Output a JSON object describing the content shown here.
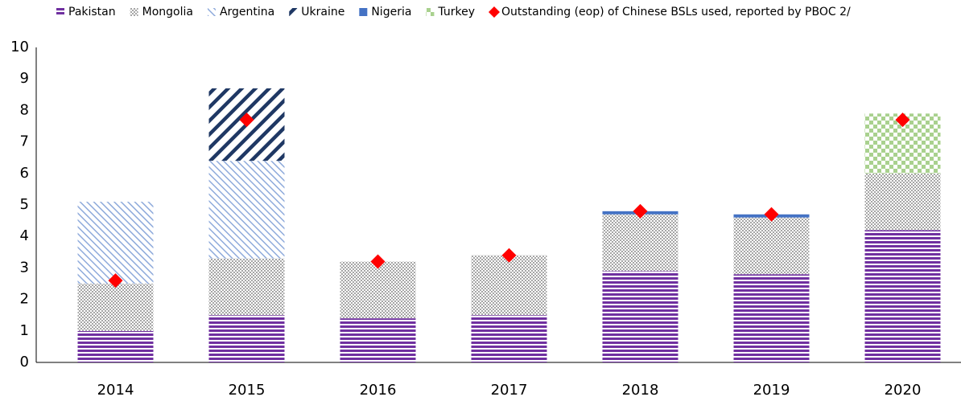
{
  "chart_data": {
    "type": "bar",
    "stacked": true,
    "categories": [
      "2014",
      "2015",
      "2016",
      "2017",
      "2018",
      "2019",
      "2020"
    ],
    "series": [
      {
        "name": "Pakistan",
        "color": "#7030a0",
        "values": [
          1.0,
          1.5,
          1.4,
          1.5,
          2.9,
          2.8,
          4.2
        ]
      },
      {
        "name": "Mongolia",
        "color": "#a6a6a6",
        "values": [
          1.5,
          1.8,
          1.8,
          1.9,
          1.8,
          1.8,
          1.8
        ]
      },
      {
        "name": "Argentina",
        "color": "#8eaadb",
        "values": [
          2.6,
          3.1,
          null,
          null,
          null,
          null,
          null
        ]
      },
      {
        "name": "Ukraine",
        "color": "#1f3864",
        "values": [
          null,
          2.3,
          null,
          null,
          null,
          null,
          null
        ]
      },
      {
        "name": "Nigeria",
        "color": "#4472c4",
        "values": [
          null,
          null,
          null,
          null,
          0.1,
          0.1,
          null
        ]
      },
      {
        "name": "Turkey",
        "color": "#a9d18e",
        "values": [
          null,
          null,
          null,
          null,
          null,
          null,
          1.9
        ]
      },
      {
        "name": "Outstanding (eop) of Chinese BSLs used, reported by PBOC 2/",
        "color": "#ff0000",
        "type": "scatter",
        "values": [
          2.6,
          7.7,
          3.2,
          3.4,
          4.8,
          4.7,
          7.7
        ]
      }
    ],
    "ylim": [
      0,
      10
    ],
    "yticks": [
      0,
      1,
      2,
      3,
      4,
      5,
      6,
      7,
      8,
      9,
      10
    ],
    "grid": false,
    "legend": "top"
  }
}
